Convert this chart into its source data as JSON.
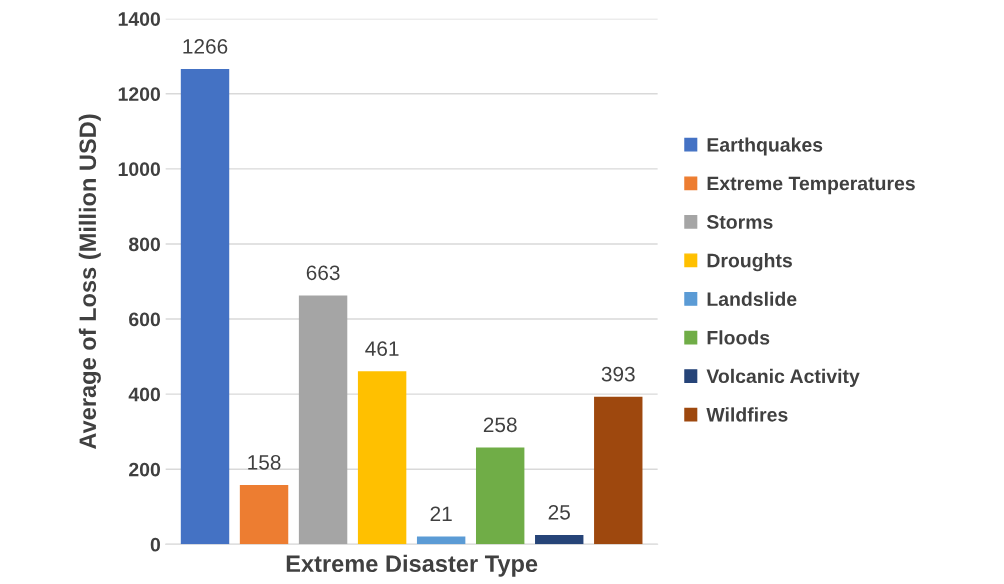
{
  "chart_data": {
    "type": "bar",
    "xlabel": "Extreme Disaster Type",
    "ylabel": "Average of Loss (Million USD)",
    "categories": [
      null
    ],
    "series": [
      {
        "name": "Earthquakes",
        "color": "#4472c4",
        "values": [
          1266
        ]
      },
      {
        "name": "Extreme Temperatures",
        "color": "#ed7d31",
        "values": [
          158
        ]
      },
      {
        "name": "Storms",
        "color": "#a5a5a5",
        "values": [
          663
        ]
      },
      {
        "name": "Droughts",
        "color": "#ffc000",
        "values": [
          461
        ]
      },
      {
        "name": "Landslide",
        "color": "#5b9bd5",
        "values": [
          21
        ]
      },
      {
        "name": "Floods",
        "color": "#70ad47",
        "values": [
          258
        ]
      },
      {
        "name": "Volcanic Activity",
        "color": "#264478",
        "values": [
          25
        ]
      },
      {
        "name": "Wildfires",
        "color": "#9e480e",
        "values": [
          393
        ]
      }
    ],
    "ylim": [
      0,
      1400
    ],
    "yticks": [
      0,
      200,
      400,
      600,
      800,
      1000,
      1200,
      1400
    ],
    "grid": "y",
    "legend": "right",
    "data_labels": true
  }
}
